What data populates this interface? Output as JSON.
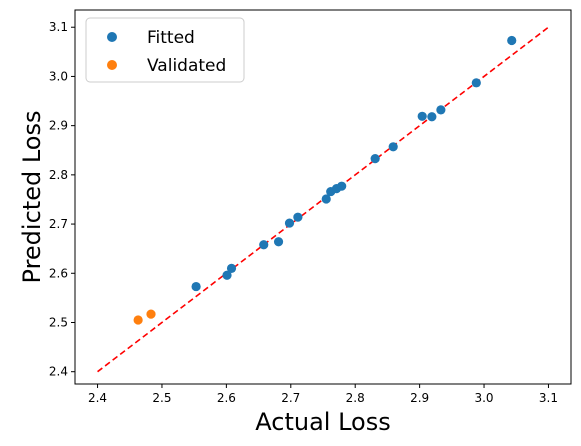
{
  "chart_data": {
    "type": "scatter",
    "title": "",
    "xlabel": "Actual Loss",
    "ylabel": "Predicted Loss",
    "xlim": [
      2.365,
      3.135
    ],
    "ylim": [
      2.375,
      3.135
    ],
    "xticks": [
      2.4,
      2.5,
      2.6,
      2.7,
      2.8,
      2.9,
      3.0,
      3.1
    ],
    "yticks": [
      2.4,
      2.5,
      2.6,
      2.7,
      2.8,
      2.9,
      3.0,
      3.1
    ],
    "grid": false,
    "legend_position": "top-left",
    "reference_line": {
      "x": [
        2.4,
        3.1
      ],
      "y": [
        2.4,
        3.1
      ],
      "color": "#ff0000",
      "style": "dashed"
    },
    "series": [
      {
        "name": "Fitted",
        "color": "#1f77b4",
        "points": [
          {
            "x": 2.553,
            "y": 2.573
          },
          {
            "x": 2.601,
            "y": 2.596
          },
          {
            "x": 2.608,
            "y": 2.61
          },
          {
            "x": 2.658,
            "y": 2.658
          },
          {
            "x": 2.681,
            "y": 2.664
          },
          {
            "x": 2.698,
            "y": 2.702
          },
          {
            "x": 2.711,
            "y": 2.714
          },
          {
            "x": 2.755,
            "y": 2.751
          },
          {
            "x": 2.762,
            "y": 2.766
          },
          {
            "x": 2.771,
            "y": 2.772
          },
          {
            "x": 2.779,
            "y": 2.777
          },
          {
            "x": 2.831,
            "y": 2.833
          },
          {
            "x": 2.859,
            "y": 2.857
          },
          {
            "x": 2.904,
            "y": 2.919
          },
          {
            "x": 2.919,
            "y": 2.918
          },
          {
            "x": 2.933,
            "y": 2.932
          },
          {
            "x": 2.988,
            "y": 2.987
          },
          {
            "x": 3.043,
            "y": 3.073
          }
        ]
      },
      {
        "name": "Validated",
        "color": "#ff7f0e",
        "points": [
          {
            "x": 2.463,
            "y": 2.505
          },
          {
            "x": 2.483,
            "y": 2.517
          }
        ]
      }
    ]
  }
}
